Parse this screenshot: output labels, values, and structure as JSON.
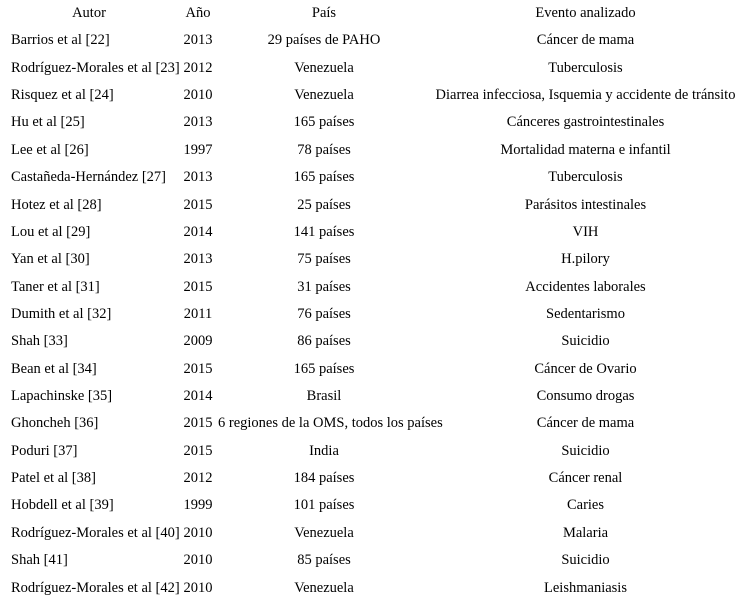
{
  "colors": {
    "background": "#ffffff",
    "text": "#000000"
  },
  "table": {
    "headers": [
      "Autor",
      "Año",
      "País",
      "Evento analizado"
    ],
    "rows": [
      [
        "Barrios et al [22]",
        "2013",
        "29 países de PAHO",
        "Cáncer de mama"
      ],
      [
        "Rodríguez-Morales et al [23]",
        "2012",
        "Venezuela",
        "Tuberculosis"
      ],
      [
        "Risquez et al [24]",
        "2010",
        "Venezuela",
        "Diarrea infecciosa, Isquemia y accidente de tránsito"
      ],
      [
        "Hu et al [25]",
        "2013",
        "165 países",
        "Cánceres gastrointestinales"
      ],
      [
        "Lee et al [26]",
        "1997",
        "78 países",
        "Mortalidad materna e infantil"
      ],
      [
        "Castañeda-Hernández [27]",
        "2013",
        "165 países",
        "Tuberculosis"
      ],
      [
        "Hotez et al [28]",
        "2015",
        "25 países",
        "Parásitos intestinales"
      ],
      [
        "Lou et al [29]",
        "2014",
        "141 países",
        "VIH"
      ],
      [
        "Yan et al [30]",
        "2013",
        "75 países",
        "H.pilory"
      ],
      [
        "Taner et al [31]",
        "2015",
        "31 países",
        "Accidentes laborales"
      ],
      [
        "Dumith et al [32]",
        "2011",
        "76 países",
        "Sedentarismo"
      ],
      [
        "Shah [33]",
        "2009",
        "86 países",
        "Suicidio"
      ],
      [
        "Bean et al [34]",
        "2015",
        "165 países",
        "Cáncer de Ovario"
      ],
      [
        "Lapachinske [35]",
        "2014",
        "Brasil",
        "Consumo drogas"
      ],
      [
        "Ghoncheh [36]",
        "2015",
        "6 regiones de la OMS, todos los países",
        "Cáncer de mama"
      ],
      [
        "Poduri [37]",
        "2015",
        "India",
        "Suicidio"
      ],
      [
        "Patel et al [38]",
        "2012",
        "184 países",
        "Cáncer renal"
      ],
      [
        "Hobdell et al [39]",
        "1999",
        "101 países",
        "Caries"
      ],
      [
        "Rodríguez-Morales et al [40]",
        "2010",
        "Venezuela",
        "Malaria"
      ],
      [
        "Shah [41]",
        "2010",
        "85 países",
        "Suicidio"
      ],
      [
        "Rodríguez-Morales et al [42]",
        "2010",
        "Venezuela",
        "Leishmaniasis"
      ]
    ]
  }
}
